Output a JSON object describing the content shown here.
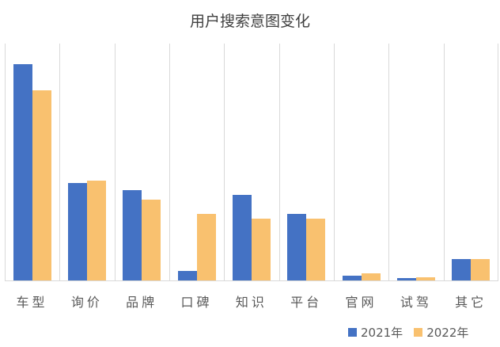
{
  "chart_data": {
    "type": "bar",
    "title": "用户搜索意图变化",
    "xlabel": "",
    "ylabel": "",
    "categories": [
      "车型",
      "询价",
      "品牌",
      "口碑",
      "知识",
      "平台",
      "官网",
      "试驾",
      "其它"
    ],
    "series": [
      {
        "name": "2021年",
        "color": "#4472C4",
        "values": [
          91,
          41,
          38,
          4,
          36,
          28,
          2,
          1,
          9
        ]
      },
      {
        "name": "2022年",
        "color": "#F9C16F",
        "values": [
          80,
          42,
          34,
          28,
          26,
          26,
          3,
          1.5,
          9
        ]
      }
    ],
    "ylim": [
      0,
      100
    ],
    "grid": "vertical",
    "legend_position": "bottom-right"
  }
}
